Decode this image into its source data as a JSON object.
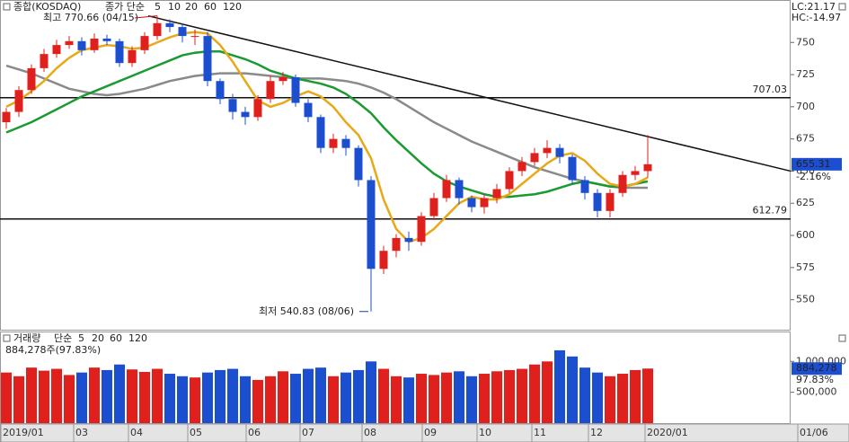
{
  "chart_data": {
    "type": "candlestick",
    "title": "종합(KOSDAQ)",
    "legend_title": "종가 단순",
    "ma_labels": [
      "5",
      "10",
      "20",
      "60",
      "120"
    ],
    "high_note": "최고 770.66 (04/15)",
    "low_note": "최저 540.83 (08/06)",
    "high_value": 770.66,
    "low_value": 540.83,
    "lc_label": "LC:21.17",
    "hc_label": "HC:-14.97",
    "last_value": 655.31,
    "change_label": "-2.16%",
    "ylim": [
      526,
      783
    ],
    "yticks": [
      550,
      575,
      600,
      625,
      650,
      675,
      700,
      725,
      750
    ],
    "levels": [
      {
        "value": 707.03
      },
      {
        "value": 612.79
      }
    ],
    "trendline": [
      770.66,
      650
    ],
    "x_tick_labels": [
      "2019/01",
      "03",
      "04",
      "05",
      "06",
      "07",
      "08",
      "09",
      "10",
      "11",
      "12",
      "2020/01",
      "01/06"
    ],
    "open": [
      688,
      696,
      713,
      730,
      741,
      748,
      751,
      744,
      753,
      751,
      734,
      744,
      755,
      765,
      762,
      755,
      755,
      720,
      706,
      696,
      692,
      706,
      720,
      723,
      703,
      692,
      668,
      675,
      668,
      643,
      574,
      588,
      598,
      595,
      615,
      629,
      643,
      629,
      622,
      629,
      636,
      650,
      657,
      664,
      668,
      661,
      643,
      633,
      619,
      633,
      647,
      650
    ],
    "high": [
      699,
      716,
      733,
      745,
      752,
      755,
      754,
      757,
      756,
      753,
      747,
      758,
      770.66,
      768,
      765,
      760,
      758,
      722,
      710,
      700,
      709,
      724,
      727,
      725,
      706,
      694,
      679,
      678,
      670,
      646,
      592,
      601,
      603,
      618,
      633,
      647,
      645,
      631,
      632,
      640,
      653,
      661,
      668,
      674,
      671,
      663,
      646,
      636,
      636,
      650,
      654,
      678
    ],
    "low": [
      683,
      692,
      710,
      727,
      738,
      745,
      740,
      742,
      748,
      731,
      731,
      741,
      752,
      758,
      750,
      748,
      716,
      702,
      690,
      686,
      689,
      703,
      717,
      700,
      688,
      664,
      664,
      662,
      638,
      540.83,
      570,
      583,
      588,
      592,
      612,
      626,
      624,
      618,
      617,
      625,
      633,
      646,
      654,
      660,
      656,
      640,
      628,
      614,
      614,
      630,
      643,
      645
    ],
    "close": [
      696,
      713,
      730,
      741,
      748,
      751,
      744,
      753,
      751,
      734,
      744,
      755,
      765,
      762,
      755,
      755,
      720,
      706,
      696,
      692,
      706,
      720,
      723,
      703,
      692,
      668,
      675,
      668,
      643,
      574,
      588,
      598,
      595,
      615,
      629,
      643,
      629,
      622,
      629,
      636,
      650,
      657,
      664,
      668,
      661,
      643,
      633,
      619,
      633,
      647,
      650,
      655.31
    ],
    "up_color": "#e0201c",
    "down_color": "#1c4fd0",
    "series": [
      {
        "name": "20",
        "color": "#e8a817",
        "values": [
          700,
          705,
          712,
          720,
          730,
          738,
          744,
          746,
          748,
          747,
          745,
          746,
          750,
          754,
          757,
          758,
          757,
          748,
          735,
          720,
          705,
          700,
          703,
          708,
          712,
          708,
          700,
          688,
          678,
          660,
          628,
          605,
          595,
          598,
          605,
          615,
          625,
          630,
          628,
          628,
          632,
          640,
          648,
          656,
          662,
          664,
          658,
          648,
          640,
          638,
          640,
          645
        ]
      },
      {
        "name": "60",
        "color": "#1a9a30",
        "values": [
          680,
          684,
          688,
          693,
          698,
          703,
          708,
          712,
          716,
          720,
          724,
          728,
          732,
          736,
          740,
          742,
          743,
          743,
          740,
          737,
          733,
          728,
          725,
          722,
          720,
          718,
          715,
          710,
          703,
          695,
          684,
          674,
          665,
          656,
          648,
          642,
          638,
          635,
          632,
          630,
          630,
          631,
          632,
          634,
          637,
          640,
          642,
          640,
          638,
          638,
          640,
          642
        ]
      },
      {
        "name": "120",
        "color": "#8a8a8a",
        "values": [
          732,
          729,
          726,
          722,
          718,
          714,
          712,
          710,
          709,
          710,
          712,
          714,
          717,
          720,
          722,
          724,
          725,
          726,
          726,
          726,
          725,
          724,
          723,
          722,
          722,
          722,
          721,
          720,
          718,
          715,
          711,
          706,
          700,
          694,
          688,
          683,
          678,
          673,
          669,
          665,
          661,
          657,
          653,
          650,
          647,
          644,
          642,
          640,
          638,
          637,
          637,
          637
        ]
      }
    ],
    "volume": {
      "title": "거래량",
      "legend_title": "단순",
      "ma_labels": [
        "5",
        "20",
        "60",
        "120"
      ],
      "info": "884,278주(97.83%)",
      "last_label": "884,278",
      "ratio_label": "97.83%",
      "ylim": [
        0,
        1470000
      ],
      "yticks": [
        {
          "value": 500000,
          "label": "500,000"
        },
        {
          "value": 1000000,
          "label": "1,000,000"
        }
      ],
      "values": [
        820000,
        760000,
        900000,
        850000,
        880000,
        780000,
        820000,
        900000,
        860000,
        950000,
        870000,
        830000,
        880000,
        800000,
        760000,
        740000,
        820000,
        860000,
        880000,
        760000,
        700000,
        760000,
        840000,
        800000,
        880000,
        900000,
        760000,
        820000,
        860000,
        1000000,
        880000,
        760000,
        740000,
        800000,
        780000,
        820000,
        840000,
        760000,
        800000,
        840000,
        860000,
        880000,
        950000,
        1000000,
        1180000,
        1080000,
        900000,
        820000,
        760000,
        800000,
        860000,
        884278
      ]
    }
  }
}
